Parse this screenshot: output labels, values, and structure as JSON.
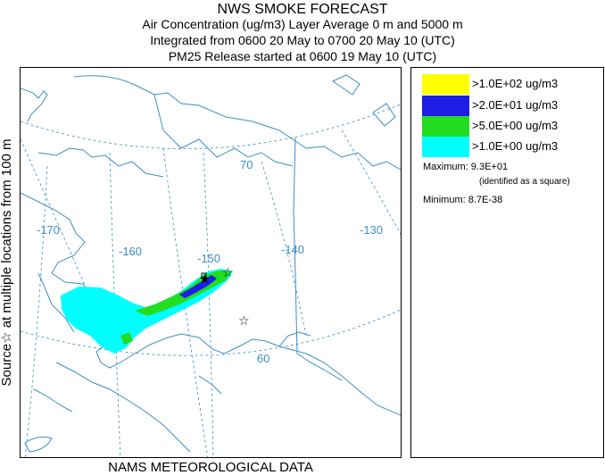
{
  "header": {
    "title": "NWS SMOKE FORECAST",
    "line1": "Air Concentration (ug/m3) Layer Average    0 m and  5000 m",
    "line2": "Integrated from 0600 20 May to 0700 20 May 10 (UTC)",
    "line3": "PM25 Release started at 0600 19 May 10 (UTC)"
  },
  "side_label": "Source☆ at multiple locations from  100 m",
  "footer": "NAMS METEOROLOGICAL DATA",
  "map": {
    "graticule_labels": {
      "lat70": "70",
      "lat60": "60",
      "lon170": "-170",
      "lon160": "-160",
      "lon150": "-150",
      "lon140": "-140",
      "lon130": "-130"
    },
    "colors": {
      "land_outline": "#3b8ec8",
      "graticule": "#3b8ec8",
      "level_yellow": "#ffff00",
      "level_blue": "#1e1ee6",
      "level_green": "#22dd22",
      "level_cyan": "#00ffff"
    },
    "source_icon": "star-icon"
  },
  "legend": {
    "items": [
      {
        "label": ">1.0E+02 ug/m3",
        "color": "#ffff00"
      },
      {
        "label": ">2.0E+01 ug/m3",
        "color": "#1e1ee6"
      },
      {
        "label": ">5.0E+00 ug/m3",
        "color": "#22dd22"
      },
      {
        "label": ">1.0E+00 ug/m3",
        "color": "#00ffff"
      }
    ],
    "maximum": "Maximum: 9.3E+01",
    "max_note": "(identified as a square)",
    "minimum": "Minimum: 8.7E-38"
  }
}
